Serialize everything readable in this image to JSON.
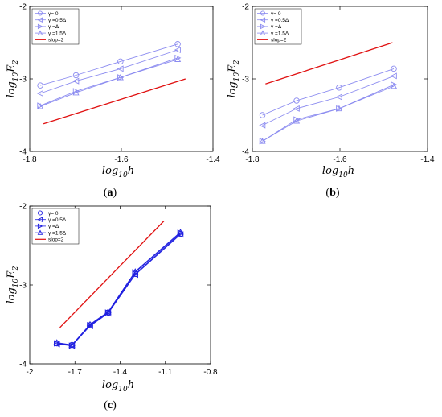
{
  "chart_data": [
    {
      "type": "line",
      "caption": "(a)",
      "xlabel": "log10h",
      "ylabel": "log10E2",
      "xlim": [
        -1.8,
        -1.4
      ],
      "ylim": [
        -4,
        -2
      ],
      "xticks": [
        "-1.8",
        "-1.6",
        "-1.4"
      ],
      "yticks": [
        "-4",
        "-3",
        "-2"
      ],
      "grid": false,
      "legend_position": "top-left",
      "series": [
        {
          "name": "γ= 0",
          "marker": "circle",
          "color": "#8c8cf0",
          "x": [
            -1.777,
            -1.699,
            -1.602,
            -1.477
          ],
          "y": [
            -3.09,
            -2.95,
            -2.76,
            -2.52
          ]
        },
        {
          "name": "γ =0.5Δ",
          "marker": "triangle-left",
          "color": "#8c8cf0",
          "x": [
            -1.777,
            -1.699,
            -1.602,
            -1.477
          ],
          "y": [
            -3.2,
            -3.03,
            -2.86,
            -2.6
          ]
        },
        {
          "name": "γ =Δ",
          "marker": "triangle-right",
          "color": "#8c8cf0",
          "x": [
            -1.777,
            -1.699,
            -1.602,
            -1.477
          ],
          "y": [
            -3.37,
            -3.17,
            -2.98,
            -2.71
          ]
        },
        {
          "name": "γ =1.5Δ",
          "marker": "triangle-up",
          "color": "#8c8cf0",
          "x": [
            -1.777,
            -1.699,
            -1.602,
            -1.477
          ],
          "y": [
            -3.38,
            -3.19,
            -2.98,
            -2.73
          ]
        },
        {
          "name": "slop=2",
          "marker": "none",
          "color": "#e01010",
          "x": [
            -1.77,
            -1.46
          ],
          "y": [
            -3.62,
            -3.0
          ]
        }
      ]
    },
    {
      "type": "line",
      "caption": "(b)",
      "xlabel": "log10h",
      "ylabel": "log10E2",
      "xlim": [
        -1.8,
        -1.4
      ],
      "ylim": [
        -4,
        -2
      ],
      "xticks": [
        "-1.8",
        "-1.6",
        "-1.4"
      ],
      "yticks": [
        "-4",
        "-3",
        "-2"
      ],
      "grid": false,
      "legend_position": "top-left",
      "series": [
        {
          "name": "γ= 0",
          "marker": "circle",
          "color": "#8c8cf0",
          "x": [
            -1.777,
            -1.699,
            -1.602,
            -1.477
          ],
          "y": [
            -3.5,
            -3.3,
            -3.12,
            -2.86
          ]
        },
        {
          "name": "γ =0.5Δ",
          "marker": "triangle-left",
          "color": "#8c8cf0",
          "x": [
            -1.777,
            -1.699,
            -1.602,
            -1.477
          ],
          "y": [
            -3.64,
            -3.41,
            -3.25,
            -2.96
          ]
        },
        {
          "name": "γ =Δ",
          "marker": "triangle-right",
          "color": "#8c8cf0",
          "x": [
            -1.777,
            -1.699,
            -1.602,
            -1.477
          ],
          "y": [
            -3.86,
            -3.56,
            -3.41,
            -3.08
          ]
        },
        {
          "name": "γ =1.5Δ",
          "marker": "triangle-up",
          "color": "#8c8cf0",
          "x": [
            -1.777,
            -1.699,
            -1.602,
            -1.477
          ],
          "y": [
            -3.86,
            -3.58,
            -3.41,
            -3.1
          ]
        },
        {
          "name": "slop=2",
          "marker": "none",
          "color": "#e01010",
          "x": [
            -1.77,
            -1.48
          ],
          "y": [
            -3.07,
            -2.5
          ]
        }
      ]
    },
    {
      "type": "line",
      "caption": "(c)",
      "xlabel": "log10h",
      "ylabel": "log10E2",
      "xlim": [
        -2,
        -0.8
      ],
      "ylim": [
        -4,
        -2
      ],
      "xticks": [
        "-2",
        "-1.7",
        "-1.4",
        "-1.1",
        "-0.8"
      ],
      "yticks": [
        "-4",
        "-3",
        "-2"
      ],
      "grid": false,
      "legend_position": "top-left",
      "series": [
        {
          "name": "γ= 0",
          "marker": "circle",
          "color": "#2020e0",
          "x": [
            -1.82,
            -1.72,
            -1.6,
            -1.48,
            -1.3,
            -1.0
          ],
          "y": [
            -3.74,
            -3.76,
            -3.51,
            -3.35,
            -2.86,
            -2.35
          ]
        },
        {
          "name": "γ =0.5Δ",
          "marker": "triangle-left",
          "color": "#2020e0",
          "x": [
            -1.82,
            -1.72,
            -1.6,
            -1.48,
            -1.3,
            -1.0
          ],
          "y": [
            -3.75,
            -3.77,
            -3.52,
            -3.36,
            -2.87,
            -2.36
          ]
        },
        {
          "name": "γ =Δ",
          "marker": "triangle-right",
          "color": "#2020e0",
          "x": [
            -1.82,
            -1.72,
            -1.6,
            -1.48,
            -1.3,
            -1.0
          ],
          "y": [
            -3.74,
            -3.77,
            -3.51,
            -3.35,
            -2.84,
            -2.34
          ]
        },
        {
          "name": "γ =1.5Δ",
          "marker": "triangle-up",
          "color": "#2020e0",
          "x": [
            -1.82,
            -1.72,
            -1.6,
            -1.48,
            -1.3,
            -1.0
          ],
          "y": [
            -3.73,
            -3.76,
            -3.5,
            -3.34,
            -2.83,
            -2.33
          ]
        },
        {
          "name": "slop=2",
          "marker": "none",
          "color": "#e01010",
          "x": [
            -1.8,
            -1.11
          ],
          "y": [
            -3.54,
            -2.19
          ]
        }
      ]
    }
  ]
}
